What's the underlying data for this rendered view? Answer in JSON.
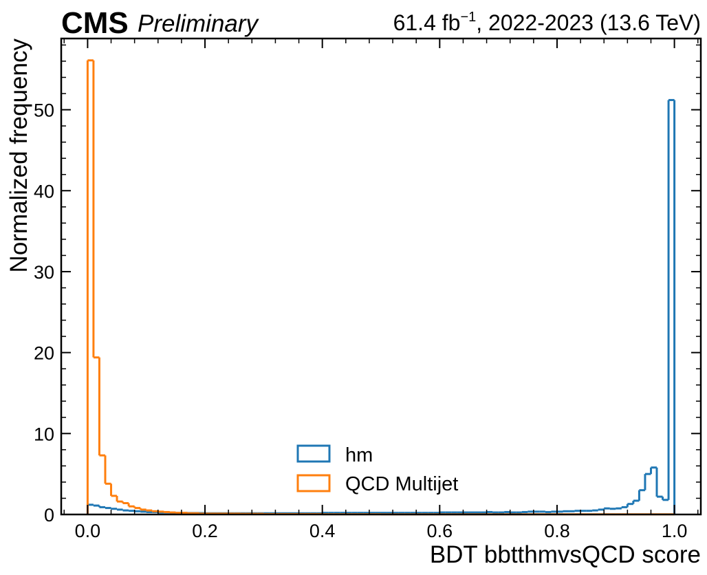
{
  "chart_data": {
    "type": "histogram-step",
    "title": "",
    "experiment_label": "CMS",
    "extra_label": "Preliminary",
    "lumi_text": "61.4 fb",
    "lumi_sup": "−1",
    "lumi_suffix": ", 2022-2023 (13.6 TeV)",
    "xlabel": "BDT bbtthmvsQCD score",
    "ylabel": "Normalized frequency",
    "xlim": [
      -0.045,
      1.045
    ],
    "ylim": [
      0,
      58.8
    ],
    "x_ticks": [
      0.0,
      0.2,
      0.4,
      0.6,
      0.8,
      1.0
    ],
    "x_tick_labels": [
      "0.0",
      "0.2",
      "0.4",
      "0.6",
      "0.8",
      "1.0"
    ],
    "y_ticks": [
      0,
      10,
      20,
      30,
      40,
      50
    ],
    "y_tick_labels": [
      "0",
      "10",
      "20",
      "30",
      "40",
      "50"
    ],
    "grid": false,
    "legend_position": "lower-center",
    "bins": {
      "start": 0.0,
      "width": 0.01,
      "count": 100
    },
    "series": [
      {
        "name": "hm",
        "color": "#1f77b4",
        "values": [
          1.2,
          1.1,
          0.9,
          0.8,
          0.7,
          0.6,
          0.5,
          0.45,
          0.4,
          0.35,
          0.3,
          0.3,
          0.25,
          0.25,
          0.2,
          0.2,
          0.2,
          0.18,
          0.18,
          0.17,
          0.15,
          0.15,
          0.15,
          0.15,
          0.15,
          0.15,
          0.15,
          0.15,
          0.15,
          0.15,
          0.15,
          0.15,
          0.15,
          0.15,
          0.15,
          0.15,
          0.15,
          0.15,
          0.15,
          0.15,
          0.2,
          0.2,
          0.2,
          0.2,
          0.2,
          0.2,
          0.2,
          0.2,
          0.2,
          0.2,
          0.2,
          0.2,
          0.2,
          0.2,
          0.2,
          0.2,
          0.2,
          0.2,
          0.2,
          0.2,
          0.25,
          0.25,
          0.25,
          0.25,
          0.25,
          0.25,
          0.25,
          0.25,
          0.3,
          0.25,
          0.25,
          0.3,
          0.25,
          0.25,
          0.3,
          0.35,
          0.35,
          0.35,
          0.3,
          0.35,
          0.35,
          0.4,
          0.4,
          0.45,
          0.45,
          0.45,
          0.5,
          0.6,
          0.75,
          0.7,
          0.75,
          0.9,
          1.3,
          1.7,
          3.0,
          5.0,
          5.8,
          2.2,
          1.8,
          51.2
        ]
      },
      {
        "name": "QCD Multijet",
        "color": "#ff7f0e",
        "values": [
          56.1,
          19.4,
          7.3,
          3.8,
          2.3,
          1.6,
          1.4,
          1.0,
          0.8,
          0.6,
          0.5,
          0.4,
          0.35,
          0.3,
          0.25,
          0.2,
          0.2,
          0.15,
          0.15,
          0.1,
          0.1,
          0.1,
          0.1,
          0.1,
          0.1,
          0.1,
          0.08,
          0.08,
          0.08,
          0.08,
          0.05,
          0.05,
          0.05,
          0.05,
          0.05,
          0.05,
          0.05,
          0.05,
          0.05,
          0.05,
          0.03,
          0.03,
          0.03,
          0.03,
          0.03,
          0.03,
          0.03,
          0.03,
          0.03,
          0.03,
          0.02,
          0.02,
          0.02,
          0.02,
          0.02,
          0.02,
          0.02,
          0.02,
          0.02,
          0.02,
          0.02,
          0.02,
          0.02,
          0.02,
          0.02,
          0.02,
          0.02,
          0.02,
          0.02,
          0.02,
          0.02,
          0.02,
          0.02,
          0.02,
          0.02,
          0.02,
          0.02,
          0.02,
          0.02,
          0.02,
          0.02,
          0.02,
          0.02,
          0.02,
          0.02,
          0.02,
          0.02,
          0.02,
          0.02,
          0.02,
          0.02,
          0.02,
          0.02,
          0.02,
          0.02,
          0.02,
          0.02,
          0.02,
          0.02,
          0.02
        ]
      }
    ]
  }
}
